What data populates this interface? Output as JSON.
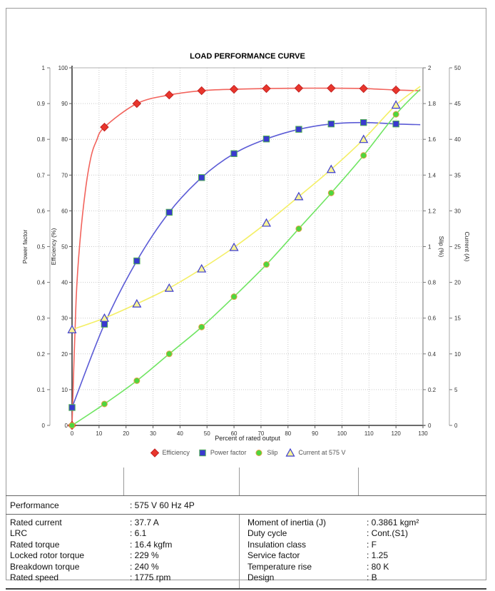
{
  "chart": {
    "title": "LOAD PERFORMANCE CURVE",
    "x_axis": {
      "title": "Percent of rated output",
      "min": 0,
      "max": 130,
      "tick_step": 10
    },
    "y_axes": [
      {
        "id": "power_factor",
        "title": "Power factor",
        "min": 0,
        "max": 1,
        "tick_step": 0.1,
        "side": "left"
      },
      {
        "id": "efficiency",
        "title": "Efficiency (%)",
        "min": 0,
        "max": 100,
        "tick_step": 10,
        "side": "left"
      },
      {
        "id": "slip",
        "title": "Slip (%)",
        "min": 0,
        "max": 2,
        "tick_step": 0.2,
        "side": "right"
      },
      {
        "id": "current",
        "title": "Current (A)",
        "min": 0,
        "max": 50,
        "tick_step": 5,
        "side": "right"
      }
    ],
    "legend": [
      {
        "label": "Efficiency",
        "marker": "diamond"
      },
      {
        "label": "Power factor",
        "marker": "square"
      },
      {
        "label": "Slip",
        "marker": "circle"
      },
      {
        "label": "Current at 575 V",
        "marker": "triangle"
      }
    ],
    "colors": {
      "grid": "#c9c9c9",
      "axis_dark": "#3a3a3a",
      "axis_light": "#aaaaaa",
      "tick_text": "#333333",
      "legend_text": "#555555",
      "efficiency_line": "#f2635c",
      "efficiency_fill": "#e8362c",
      "efficiency_stroke": "#c42020",
      "power_factor_line": "#5b5bd6",
      "power_factor_fill": "#3939cf",
      "power_factor_stroke": "#4fae53",
      "slip_line": "#6fe562",
      "slip_fill": "#4ed63e",
      "slip_stroke": "#dfa243",
      "current_line": "#f4ef66",
      "current_fill": "#f7f397",
      "current_stroke": "#3c3ccf"
    }
  },
  "chart_data": {
    "type": "line",
    "title": "LOAD PERFORMANCE CURVE",
    "xlabel": "Percent of rated output",
    "xlim": [
      0,
      130
    ],
    "x": [
      0,
      12,
      24,
      36,
      48,
      60,
      72,
      84,
      96,
      108,
      120
    ],
    "series": [
      {
        "name": "Efficiency",
        "axis": "efficiency",
        "marker": "diamond",
        "values": [
          0,
          83.4,
          90.0,
          92.4,
          93.6,
          94.0,
          94.2,
          94.3,
          94.3,
          94.2,
          93.8
        ],
        "curve_extra": [
          [
            1.5,
            35
          ],
          [
            3,
            52
          ],
          [
            5,
            66
          ],
          [
            7,
            75
          ],
          [
            9,
            79.5
          ],
          [
            129,
            93.6
          ]
        ]
      },
      {
        "name": "Power factor",
        "axis": "power_factor",
        "marker": "square",
        "values": [
          0.05,
          0.283,
          0.46,
          0.596,
          0.693,
          0.76,
          0.801,
          0.828,
          0.843,
          0.847,
          0.843
        ],
        "curve_extra": [
          [
            129,
            0.841
          ]
        ]
      },
      {
        "name": "Slip",
        "axis": "slip",
        "marker": "circle",
        "values": [
          0,
          0.12,
          0.25,
          0.4,
          0.55,
          0.72,
          0.9,
          1.1,
          1.3,
          1.51,
          1.74
        ],
        "curve_extra": [
          [
            129,
            1.88
          ]
        ]
      },
      {
        "name": "Current at 575 V",
        "axis": "current",
        "marker": "triangle",
        "values": [
          13.4,
          15.0,
          17.0,
          19.2,
          21.9,
          24.9,
          28.3,
          32.0,
          35.8,
          40.0,
          44.8
        ],
        "curve_extra": [
          [
            129,
            47.4
          ]
        ]
      }
    ]
  },
  "spec_table": {
    "performance": {
      "label": "Performance",
      "value": ": 575 V 60 Hz 4P"
    },
    "left_rows": [
      {
        "label": "Rated current",
        "value": ": 37.7 A"
      },
      {
        "label": "LRC",
        "value": ": 6.1"
      },
      {
        "label": "Rated torque",
        "value": ": 16.4 kgfm"
      },
      {
        "label": "Locked rotor torque",
        "value": ": 229 %"
      },
      {
        "label": "Breakdown torque",
        "value": ": 240 %"
      },
      {
        "label": "Rated speed",
        "value": ": 1775 rpm"
      }
    ],
    "right_rows": [
      {
        "label": "Moment of inertia (J)",
        "value": ": 0.3861 kgm²"
      },
      {
        "label": "Duty cycle",
        "value": ": Cont.(S1)"
      },
      {
        "label": "Insulation class",
        "value": ": F"
      },
      {
        "label": "Service factor",
        "value": ": 1.25"
      },
      {
        "label": "Temperature rise",
        "value": ": 80 K"
      },
      {
        "label": "Design",
        "value": ": B"
      }
    ]
  }
}
